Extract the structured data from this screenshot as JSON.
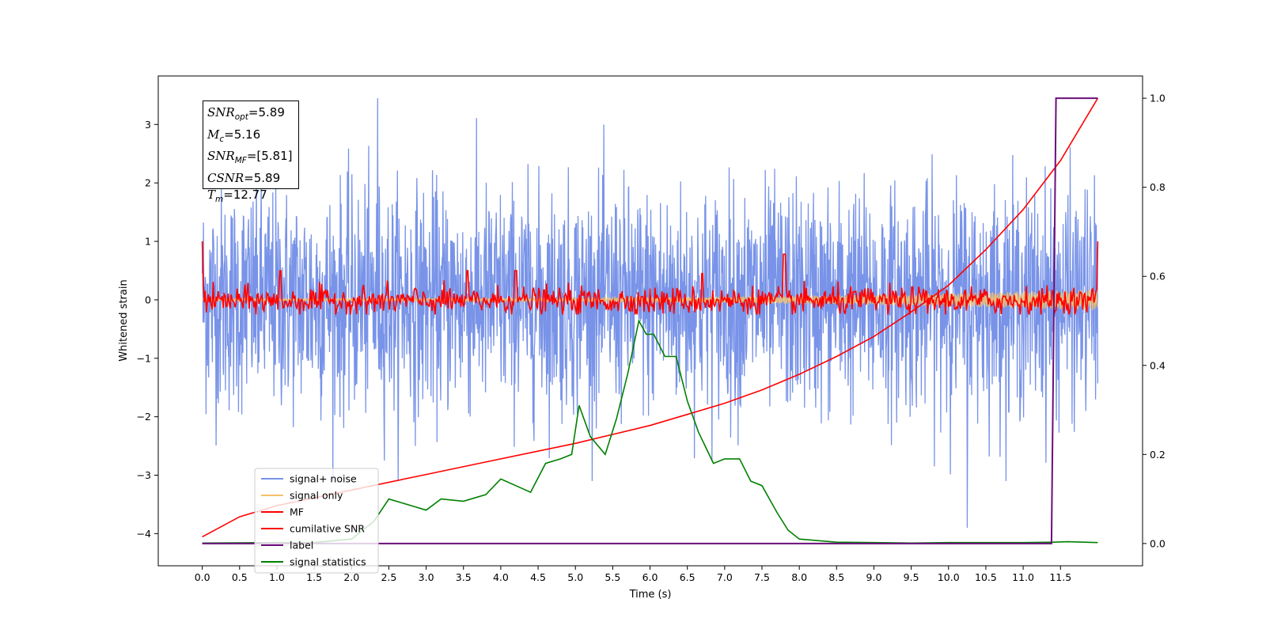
{
  "chart_data": {
    "type": "line",
    "xlabel": "Time (s)",
    "ylabel": "Whitened strain",
    "xlim": [
      -0.59,
      12.6
    ],
    "ylim": [
      -4.55,
      3.83
    ],
    "y2lim": [
      -0.05,
      1.05
    ],
    "xticks": [
      "0.0",
      "0.5",
      "1.0",
      "1.5",
      "2.0",
      "2.5",
      "3.0",
      "3.5",
      "4.0",
      "4.5",
      "5.0",
      "5.5",
      "6.0",
      "6.5",
      "7.0",
      "7.5",
      "8.0",
      "8.5",
      "9.0",
      "9.5",
      "10.0",
      "10.5",
      "11.0",
      "11.5"
    ],
    "yticks": [
      "3",
      "2",
      "1",
      "0",
      "−1",
      "−2",
      "−3",
      "−4"
    ],
    "y2ticks": [
      "1.0",
      "0.8",
      "0.6",
      "0.4",
      "0.2",
      "0.0"
    ],
    "annotation": {
      "snr_opt": "5.89",
      "mc": "5.16",
      "snr_mf": "[5.81]",
      "csnr": "5.89",
      "tm": "12.77"
    },
    "legend": {
      "placement": "lower-left",
      "entries": [
        "signal+ noise",
        "signal only",
        "MF",
        "cumilative SNR",
        "label",
        "signal statistics"
      ]
    },
    "series": [
      {
        "name": "signal+ noise",
        "axis": "left",
        "color": "#7893e8",
        "description_values": {
          "x_range": [
            0.0,
            12.0
          ],
          "typical_amplitude": 1.0,
          "max": 3.45,
          "min": -3.9
        }
      },
      {
        "name": "signal only",
        "axis": "left",
        "color": "#f4c26b",
        "x": [
          0.0,
          12.0
        ],
        "amplitude": [
          0.0,
          0.18
        ]
      },
      {
        "name": "MF",
        "axis": "left",
        "color": "#ff0000",
        "x_range": [
          0.0,
          12.0
        ],
        "values_hint": {
          "start": 1.0,
          "end": 1.0,
          "typical": 0.15,
          "peaks": [
            [
              1.05,
              0.5
            ],
            [
              3.55,
              0.5
            ],
            [
              4.2,
              0.5
            ],
            [
              6.7,
              0.45
            ],
            [
              7.8,
              0.78
            ]
          ]
        }
      },
      {
        "name": "cumilative SNR",
        "axis": "right",
        "color": "#ff0000",
        "x": [
          0.0,
          0.5,
          1.0,
          2.0,
          3.0,
          4.0,
          5.0,
          5.5,
          6.0,
          6.5,
          7.0,
          7.5,
          8.0,
          8.5,
          9.0,
          9.5,
          10.0,
          10.5,
          11.0,
          11.5,
          12.0
        ],
        "y": [
          0.015,
          0.06,
          0.085,
          0.12,
          0.155,
          0.19,
          0.225,
          0.245,
          0.265,
          0.29,
          0.315,
          0.345,
          0.38,
          0.42,
          0.465,
          0.52,
          0.58,
          0.66,
          0.75,
          0.86,
          1.0
        ]
      },
      {
        "name": "label",
        "axis": "right",
        "color": "#6a0f7a",
        "x": [
          0.0,
          11.38,
          11.44,
          11.48,
          12.0
        ],
        "y": [
          0.0,
          0.0,
          1.0,
          1.0,
          1.0
        ]
      },
      {
        "name": "signal statistics",
        "axis": "right",
        "color": "#008000",
        "x": [
          0.0,
          1.0,
          1.5,
          2.0,
          2.3,
          2.5,
          2.8,
          3.0,
          3.2,
          3.5,
          3.8,
          4.0,
          4.2,
          4.4,
          4.6,
          4.8,
          4.95,
          5.05,
          5.2,
          5.4,
          5.55,
          5.7,
          5.85,
          5.95,
          6.05,
          6.2,
          6.35,
          6.5,
          6.65,
          6.85,
          7.0,
          7.2,
          7.35,
          7.5,
          7.7,
          7.85,
          8.0,
          8.5,
          9.0,
          9.5,
          10.0,
          11.0,
          11.4,
          11.6,
          12.0
        ],
        "y": [
          0.001,
          0.002,
          0.002,
          0.01,
          0.05,
          0.1,
          0.085,
          0.075,
          0.1,
          0.095,
          0.11,
          0.145,
          0.13,
          0.115,
          0.18,
          0.19,
          0.2,
          0.31,
          0.24,
          0.2,
          0.28,
          0.38,
          0.5,
          0.47,
          0.47,
          0.42,
          0.42,
          0.32,
          0.25,
          0.18,
          0.19,
          0.19,
          0.14,
          0.13,
          0.07,
          0.03,
          0.01,
          0.003,
          0.002,
          0.001,
          0.002,
          0.002,
          0.003,
          0.004,
          0.002
        ]
      }
    ]
  },
  "colors": {
    "noise": "#7893e8",
    "signal": "#f4c26b",
    "mf": "#ff0000",
    "csnr": "#ff0000",
    "label": "#6a0f7a",
    "stats": "#008000"
  }
}
